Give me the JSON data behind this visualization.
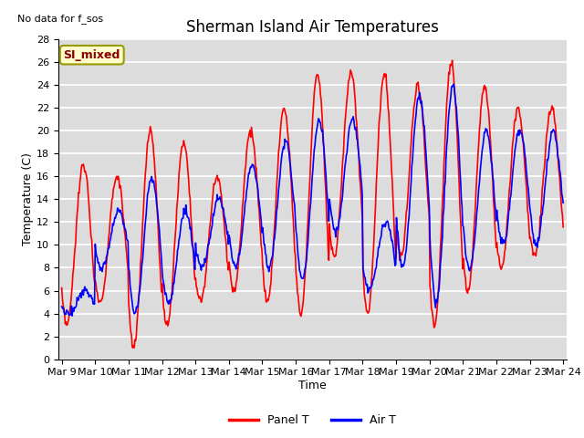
{
  "title": "Sherman Island Air Temperatures",
  "xlabel": "Time",
  "ylabel": "Temperature (C)",
  "top_left_text": "No data for f_sos",
  "box_label": "SI_mixed",
  "legend_labels": [
    "Panel T",
    "Air T"
  ],
  "line_colors": [
    "red",
    "blue"
  ],
  "ylim": [
    0,
    28
  ],
  "yticks": [
    0,
    2,
    4,
    6,
    8,
    10,
    12,
    14,
    16,
    18,
    20,
    22,
    24,
    26,
    28
  ],
  "x_tick_labels": [
    "Mar 9",
    "Mar 10",
    "Mar 11",
    "Mar 12",
    "Mar 13",
    "Mar 14",
    "Mar 15",
    "Mar 16",
    "Mar 17",
    "Mar 18",
    "Mar 19",
    "Mar 20",
    "Mar 21",
    "Mar 22",
    "Mar 23",
    "Mar 24"
  ],
  "panel_facecolor": "#dcdcdc",
  "grid_color": "white",
  "title_fontsize": 12,
  "axis_label_fontsize": 9,
  "tick_fontsize": 8
}
